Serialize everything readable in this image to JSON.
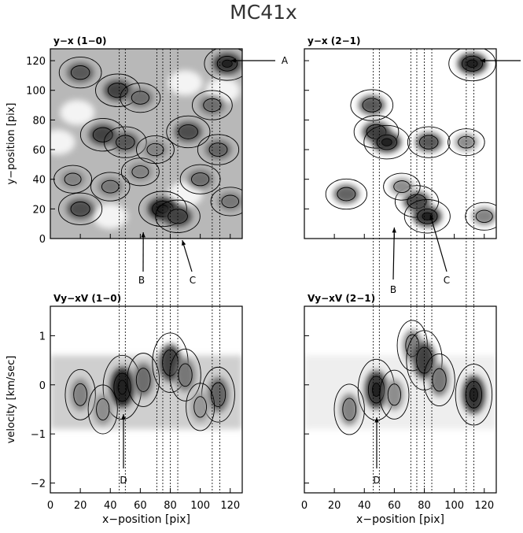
{
  "figure_title": "MC41x",
  "chart_data": [
    {
      "type": "heatmap",
      "panel_label": "y−x (1−0)",
      "xlim": [
        0,
        128
      ],
      "ylim": [
        0,
        128
      ],
      "xticks": [],
      "yticks": [
        "0",
        "20",
        "40",
        "60",
        "80",
        "100",
        "120"
      ],
      "ylabel": "y−position [pix]",
      "xlabel": "",
      "annotations": [
        "A",
        "B",
        "C"
      ],
      "markers": {
        "A": [
          112,
          118
        ],
        "B": [
          64,
          20
        ],
        "C": [
          88,
          2
        ]
      },
      "dotted_x": [
        46,
        50,
        71,
        75,
        80,
        85,
        108,
        113
      ],
      "blobs": [
        {
          "x": 20,
          "y": 112,
          "v": 0.7
        },
        {
          "x": 45,
          "y": 100,
          "v": 0.8
        },
        {
          "x": 60,
          "y": 95,
          "v": 0.6
        },
        {
          "x": 35,
          "y": 70,
          "v": 0.8
        },
        {
          "x": 50,
          "y": 65,
          "v": 0.7
        },
        {
          "x": 92,
          "y": 72,
          "v": 0.75
        },
        {
          "x": 112,
          "y": 60,
          "v": 0.65
        },
        {
          "x": 15,
          "y": 40,
          "v": 0.5
        },
        {
          "x": 60,
          "y": 45,
          "v": 0.5
        },
        {
          "x": 100,
          "y": 40,
          "v": 0.6
        },
        {
          "x": 20,
          "y": 20,
          "v": 0.75
        },
        {
          "x": 75,
          "y": 20,
          "v": 0.95
        },
        {
          "x": 85,
          "y": 15,
          "v": 0.8
        },
        {
          "x": 118,
          "y": 118,
          "v": 0.85
        },
        {
          "x": 108,
          "y": 90,
          "v": 0.6
        },
        {
          "x": 70,
          "y": 60,
          "v": 0.5
        },
        {
          "x": 40,
          "y": 35,
          "v": 0.55
        },
        {
          "x": 120,
          "y": 25,
          "v": 0.55
        }
      ]
    },
    {
      "type": "heatmap",
      "panel_label": "y−x (2−1)",
      "xlim": [
        0,
        128
      ],
      "ylim": [
        0,
        128
      ],
      "xticks": [],
      "yticks": [],
      "annotations": [
        "B",
        "C"
      ],
      "markers": {
        "A": [
          112,
          118
        ],
        "B": [
          64,
          5
        ],
        "C": [
          84,
          10
        ]
      },
      "dotted_x": [
        46,
        50,
        71,
        75,
        80,
        85,
        108,
        113
      ],
      "blobs": [
        {
          "x": 45,
          "y": 90,
          "v": 0.7
        },
        {
          "x": 48,
          "y": 72,
          "v": 0.8
        },
        {
          "x": 55,
          "y": 65,
          "v": 0.85
        },
        {
          "x": 83,
          "y": 65,
          "v": 0.7
        },
        {
          "x": 28,
          "y": 30,
          "v": 0.65
        },
        {
          "x": 75,
          "y": 25,
          "v": 0.75
        },
        {
          "x": 82,
          "y": 15,
          "v": 0.85
        },
        {
          "x": 112,
          "y": 118,
          "v": 0.9
        },
        {
          "x": 108,
          "y": 65,
          "v": 0.45
        },
        {
          "x": 65,
          "y": 35,
          "v": 0.45
        },
        {
          "x": 120,
          "y": 15,
          "v": 0.5
        }
      ]
    },
    {
      "type": "heatmap",
      "panel_label": "Vy−xV (1−0)",
      "xlim": [
        0,
        128
      ],
      "ylim": [
        -2.2,
        1.6
      ],
      "xticks": [
        "0",
        "20",
        "40",
        "60",
        "80",
        "100",
        "120"
      ],
      "yticks": [
        "−2",
        "−1",
        "0",
        "1"
      ],
      "xlabel": "x−position [pix]",
      "ylabel": "velocity [km/sec]",
      "annotations": [
        "D"
      ],
      "markers": {
        "D": [
          48,
          -1.8
        ]
      },
      "dotted_x": [
        46,
        50,
        71,
        75,
        80,
        85,
        108,
        113
      ],
      "blobs": [
        {
          "x": 20,
          "y": -0.2,
          "v": 0.5
        },
        {
          "x": 48,
          "y": -0.05,
          "v": 0.95
        },
        {
          "x": 62,
          "y": 0.1,
          "v": 0.6
        },
        {
          "x": 80,
          "y": 0.45,
          "v": 0.8
        },
        {
          "x": 90,
          "y": 0.2,
          "v": 0.55
        },
        {
          "x": 112,
          "y": -0.2,
          "v": 0.65
        },
        {
          "x": 35,
          "y": -0.5,
          "v": 0.45
        },
        {
          "x": 100,
          "y": -0.45,
          "v": 0.4
        }
      ]
    },
    {
      "type": "heatmap",
      "panel_label": "Vy−xV (2−1)",
      "xlim": [
        0,
        128
      ],
      "ylim": [
        -2.2,
        1.6
      ],
      "xticks": [
        "0",
        "20",
        "40",
        "60",
        "80",
        "100",
        "120"
      ],
      "yticks": [],
      "xlabel": "x−position [pix]",
      "annotations": [
        "D"
      ],
      "markers": {
        "D": [
          48,
          -1.8
        ]
      },
      "dotted_x": [
        46,
        50,
        71,
        75,
        80,
        85,
        108,
        113
      ],
      "blobs": [
        {
          "x": 48,
          "y": -0.1,
          "v": 0.85
        },
        {
          "x": 30,
          "y": -0.5,
          "v": 0.5
        },
        {
          "x": 72,
          "y": 0.8,
          "v": 0.5
        },
        {
          "x": 80,
          "y": 0.5,
          "v": 0.8
        },
        {
          "x": 90,
          "y": 0.1,
          "v": 0.55
        },
        {
          "x": 113,
          "y": -0.2,
          "v": 0.85
        },
        {
          "x": 60,
          "y": -0.2,
          "v": 0.45
        }
      ]
    }
  ]
}
